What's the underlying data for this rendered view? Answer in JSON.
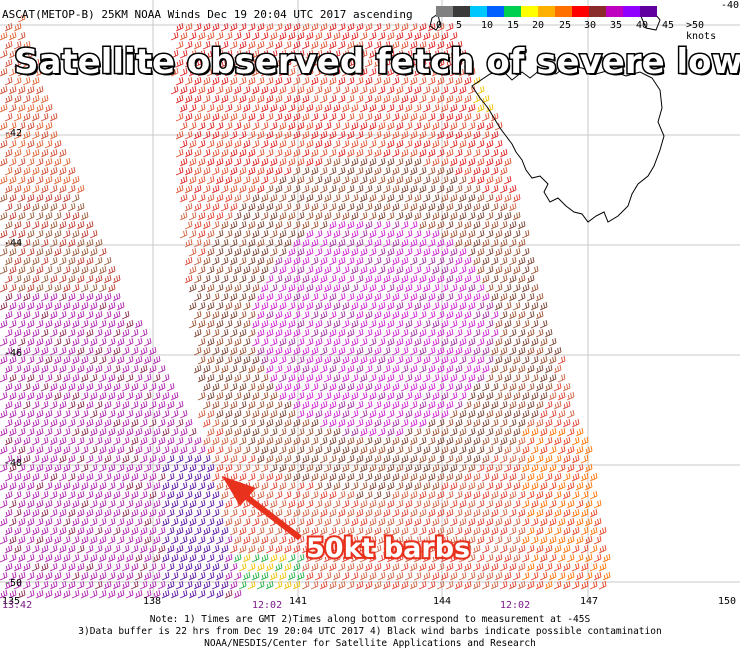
{
  "header": "ASCAT(METOP-B) 25KM NOAA Winds Dec 19 20:04 UTC 2017 ascending",
  "annotation_title": "Satellite observed fetch of severe low",
  "annotation_callout": "50kt barbs",
  "legend": {
    "labels": [
      "0",
      "5",
      "10",
      "15",
      "20",
      "25",
      "30",
      "35",
      "40",
      "45",
      ">50 knots"
    ],
    "colors": [
      "#808080",
      "#3a3a3a",
      "#00c8ff",
      "#0060ff",
      "#00d050",
      "#ffff00",
      "#ffb000",
      "#ff7000",
      "#ff0000",
      "#8b2a2a",
      "#c000c0",
      "#9000ff",
      "#6000a0"
    ]
  },
  "latitude_labels": [
    "-40",
    "-42",
    "-44",
    "-46",
    "-48",
    "-50"
  ],
  "longitude_labels": [
    "135",
    "138",
    "141",
    "144",
    "147",
    "150"
  ],
  "pass_times": [
    "13:42",
    "12:02",
    "12:02"
  ],
  "notes": [
    "Note: 1) Times are GMT 2)Times along bottom correspond to measurement at -45S",
    "3)Data buffer is 22 hrs from Dec 19 20:04 UTC 2017 4) Black wind barbs indicate possible contamination",
    "NOAA/NESDIS/Center for Satellite Applications and Research"
  ]
}
